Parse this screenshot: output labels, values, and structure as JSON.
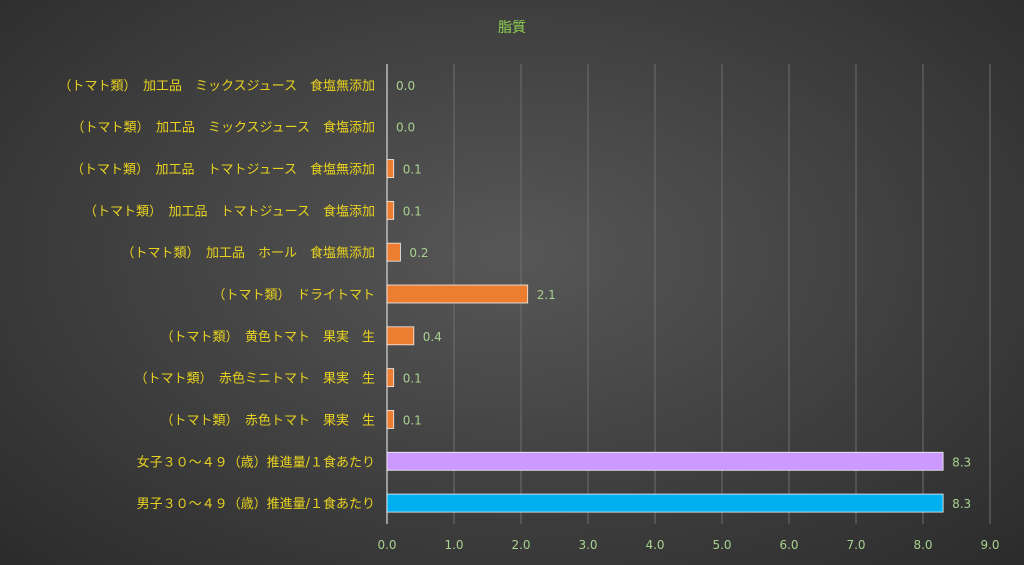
{
  "chart_data": {
    "type": "bar",
    "orientation": "horizontal",
    "title": "脂質",
    "xlabel": "",
    "ylabel": "",
    "xlim": [
      0,
      9
    ],
    "x_ticks": [
      "0.0",
      "1.0",
      "2.0",
      "3.0",
      "4.0",
      "5.0",
      "6.0",
      "7.0",
      "8.0",
      "9.0"
    ],
    "grid": true,
    "legend": "none",
    "categories": [
      "（トマト類）　加工品　ミックスジュース　食塩無添加",
      "（トマト類）　加工品　ミックスジュース　食塩添加",
      "（トマト類）　加工品　トマトジュース　食塩無添加",
      "（トマト類）　加工品　トマトジュース　食塩添加",
      "（トマト類）　加工品　ホール　食塩無添加",
      "（トマト類）　ドライトマト",
      "（トマト類）　黄色トマト　果実　生",
      "（トマト類）　赤色ミニトマト　果実　生",
      "（トマト類）　赤色トマト　果実　生",
      "女子３０～４９（歳）推進量/１食あたり",
      "男子３０～４９（歳）推進量/１食あたり"
    ],
    "values": [
      0.0,
      0.0,
      0.1,
      0.1,
      0.2,
      2.1,
      0.4,
      0.1,
      0.1,
      8.3,
      8.3
    ],
    "value_labels": [
      "0.0",
      "0.0",
      "0.1",
      "0.1",
      "0.2",
      "2.1",
      "0.4",
      "0.1",
      "0.1",
      "8.3",
      "8.3"
    ],
    "bar_colors": [
      "#ed7d31",
      "#ed7d31",
      "#ed7d31",
      "#ed7d31",
      "#ed7d31",
      "#ed7d31",
      "#ed7d31",
      "#ed7d31",
      "#ed7d31",
      "#cc99ff",
      "#00b0f0"
    ],
    "colors": {
      "category_label": "#e8d21f",
      "value_label": "#a9d18e",
      "tick_label": "#a9d18e",
      "title": "#8fd14f",
      "gridline": "#6e6e6e",
      "axis": "#d9d9d9"
    }
  }
}
